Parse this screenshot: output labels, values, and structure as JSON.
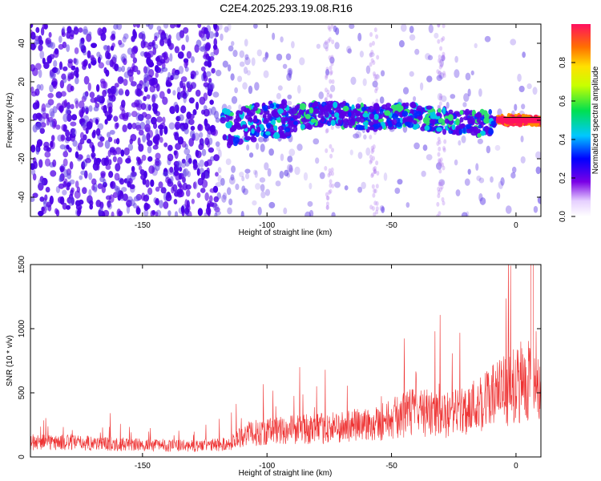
{
  "title": "C2E4.2025.293.19.08.R16",
  "chart_data": [
    {
      "type": "heatmap",
      "xlabel": "Height of straight line (km)",
      "ylabel": "Frequency (Hz)",
      "xlim": [
        -195,
        10
      ],
      "ylim": [
        -50,
        50
      ],
      "xticks": [
        -150,
        -100,
        -50,
        0
      ],
      "yticks": [
        -40,
        -20,
        0,
        20,
        40
      ],
      "xtick_labels": [
        "-150",
        "-100",
        "-50",
        "0"
      ],
      "ytick_labels": [
        "-40",
        "-20",
        "0",
        "20",
        "40"
      ],
      "colorbar": {
        "label": "Normalized spectral amplitude",
        "range": [
          0.0,
          1.0
        ],
        "ticks": [
          0.0,
          0.2,
          0.4,
          0.6,
          0.8
        ],
        "tick_labels": [
          "0.0",
          "0.2",
          "0.4",
          "0.6",
          "0.8"
        ]
      },
      "ridge": {
        "description_points_x": [
          -115,
          -100,
          -90,
          -75,
          -60,
          -45,
          -30,
          -15,
          -5,
          0,
          10
        ],
        "description_points_y": [
          -4,
          0,
          1,
          4,
          1,
          3,
          0,
          -2,
          0,
          0,
          0
        ]
      }
    },
    {
      "type": "line",
      "xlabel": "Height of straight line (km)",
      "ylabel": "SNR (10 * v/v)",
      "xlim": [
        -195,
        10
      ],
      "ylim": [
        0,
        1500
      ],
      "xticks": [
        -150,
        -100,
        -50,
        0
      ],
      "yticks": [
        0,
        500,
        1000,
        1500
      ],
      "xtick_labels": [
        "-150",
        "-100",
        "-50",
        "0"
      ],
      "ytick_labels": [
        "0",
        "500",
        "1000",
        "1500"
      ],
      "series": [
        {
          "name": "SNR",
          "color": "#ee3333",
          "envelope_x": [
            -195,
            -170,
            -150,
            -130,
            -115,
            -110,
            -100,
            -90,
            -80,
            -70,
            -60,
            -50,
            -40,
            -30,
            -20,
            -10,
            0,
            5,
            7,
            10
          ],
          "envelope_y": [
            150,
            140,
            120,
            110,
            130,
            220,
            260,
            280,
            280,
            300,
            330,
            380,
            470,
            400,
            480,
            600,
            720,
            800,
            700,
            600
          ]
        }
      ]
    }
  ]
}
